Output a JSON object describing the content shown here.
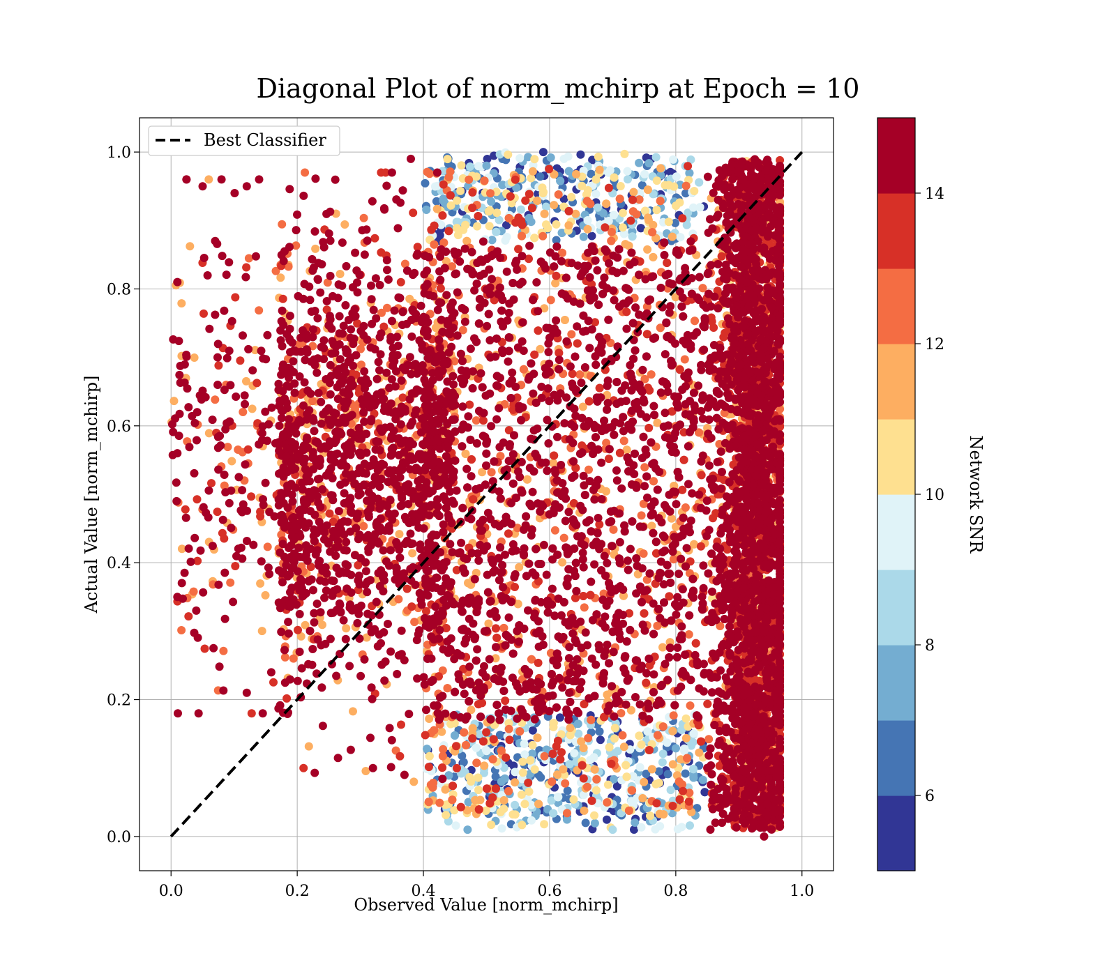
{
  "chart_data": {
    "type": "scatter",
    "title": "Diagonal Plot of norm_mchirp at Epoch = 10",
    "xlabel": "Observed Value [norm_mchirp]",
    "ylabel": "Actual Value [norm_mchirp]",
    "xlim": [
      -0.05,
      1.05
    ],
    "ylim": [
      -0.05,
      1.05
    ],
    "xticks": [
      "0.0",
      "0.2",
      "0.4",
      "0.6",
      "0.8",
      "1.0"
    ],
    "yticks": [
      "0.0",
      "0.2",
      "0.4",
      "0.6",
      "0.8",
      "1.0"
    ],
    "grid": true,
    "legend": {
      "placement": "upper-left",
      "entries": [
        {
          "label": "Best Classifier",
          "style": "dashed",
          "color": "#000000"
        }
      ]
    },
    "reference_line": {
      "name": "Best Classifier",
      "x": [
        0.0,
        1.0
      ],
      "y": [
        0.0,
        1.0
      ]
    },
    "colorbar": {
      "label": "Network SNR",
      "range": [
        5,
        15
      ],
      "ticks": [
        "6",
        "8",
        "10",
        "12",
        "14"
      ],
      "colors": [
        "#313695",
        "#4575b4",
        "#74add1",
        "#abd9e9",
        "#e0f3f8",
        "#fee090",
        "#fdae61",
        "#f46d43",
        "#d73027",
        "#a50026"
      ]
    },
    "series": [
      {
        "name": "",
        "description_points": [
          {
            "x": 0.01,
            "y": 0.81,
            "snr": 15
          },
          {
            "x": 0.08,
            "y": 0.96,
            "snr": 15
          },
          {
            "x": 0.05,
            "y": 0.95,
            "snr": 15
          },
          {
            "x": 0.12,
            "y": 0.95,
            "snr": 15
          },
          {
            "x": 0.07,
            "y": 0.87,
            "snr": 15
          },
          {
            "x": 0.01,
            "y": 0.56,
            "snr": 14
          },
          {
            "x": 0.01,
            "y": 0.35,
            "snr": 14
          },
          {
            "x": 0.04,
            "y": 0.33,
            "snr": 15
          },
          {
            "x": 0.12,
            "y": 0.21,
            "snr": 15
          },
          {
            "x": 0.21,
            "y": 0.1,
            "snr": 13
          },
          {
            "x": 0.32,
            "y": 0.1,
            "snr": 15
          },
          {
            "x": 0.37,
            "y": 0.09,
            "snr": 15
          },
          {
            "x": 0.38,
            "y": 0.99,
            "snr": 15
          },
          {
            "x": 0.59,
            "y": 1.0,
            "snr": 5
          },
          {
            "x": 0.5,
            "y": 0.98,
            "snr": 7
          },
          {
            "x": 0.94,
            "y": 0.0,
            "snr": 15
          },
          {
            "x": 0.47,
            "y": 0.01,
            "snr": 7
          },
          {
            "x": 0.7,
            "y": 0.01,
            "snr": 8
          }
        ]
      }
    ]
  }
}
